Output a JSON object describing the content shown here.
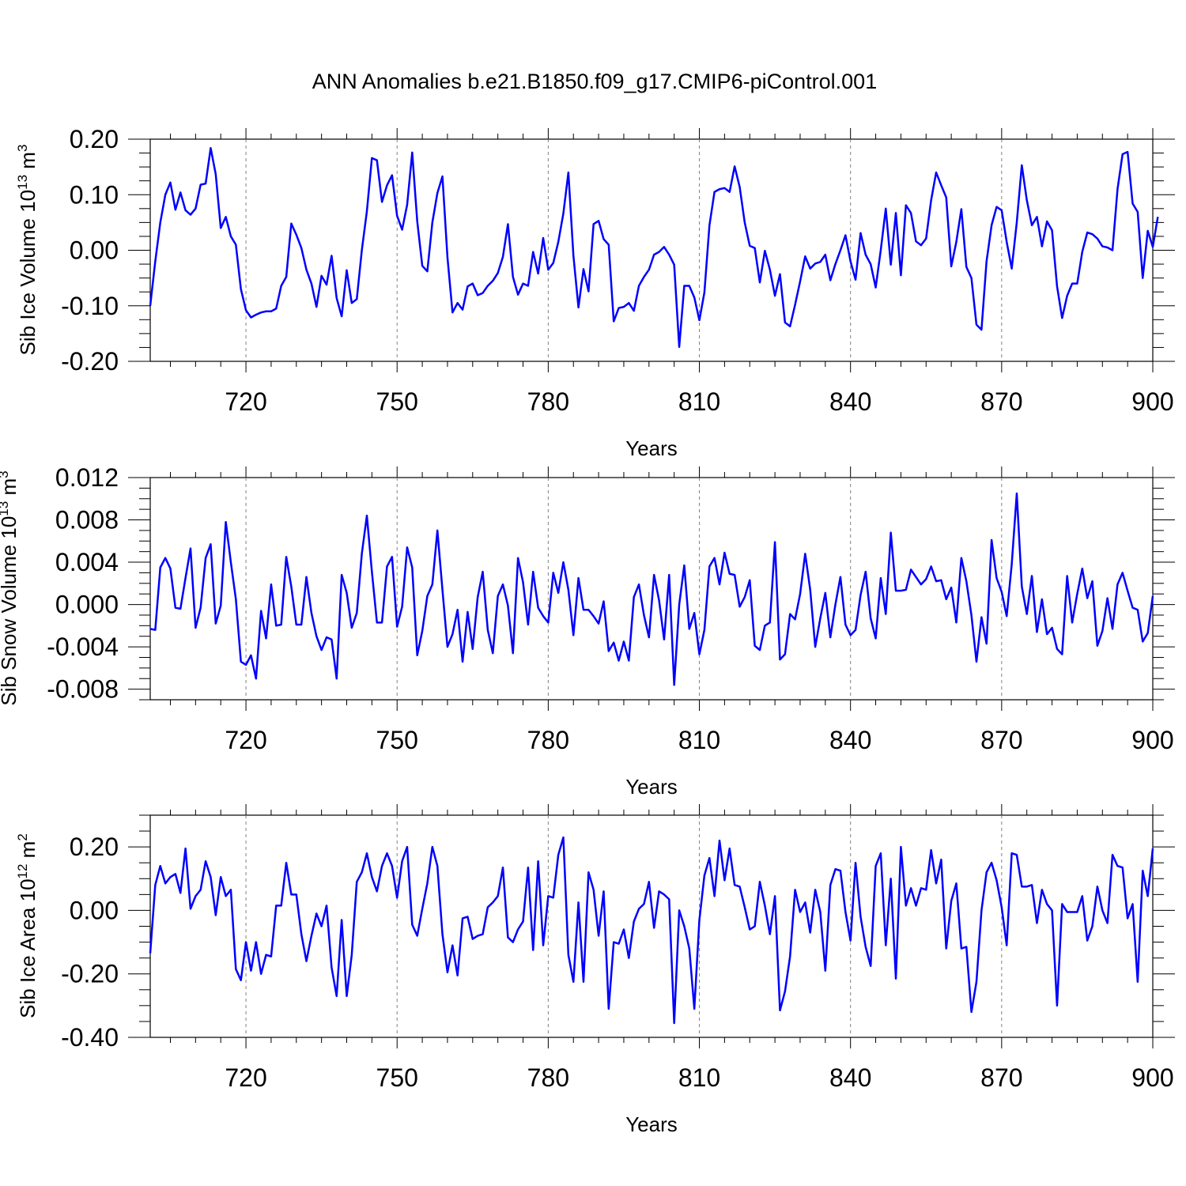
{
  "figure": {
    "title": "ANN Anomalies b.e21.B1850.f09_g17.CMIP6-piControl.001",
    "line_color": "#0000ff",
    "grid_color": "#808080",
    "axis_color": "#000000"
  },
  "chart_data": [
    {
      "type": "line",
      "title": "ANN Anomalies b.e21.B1850.f09_g17.CMIP6-piControl.001",
      "ylabel": "Sib Ice Volume 10",
      "ylabel_exponent": "13",
      "ylabel_unit": "m",
      "ylabel_unit_exponent": "3",
      "xlabel": "Years",
      "xlim": [
        701,
        900
      ],
      "ylim": [
        -0.2,
        0.2
      ],
      "xticks": [
        720,
        750,
        780,
        810,
        840,
        870,
        900
      ],
      "xtick_labels": [
        "720",
        "750",
        "780",
        "810",
        "840",
        "870",
        "900"
      ],
      "yticks": [
        -0.2,
        -0.1,
        0.0,
        0.1,
        0.2
      ],
      "ytick_labels": [
        "-0.20",
        "-0.10",
        "0.00",
        "0.10",
        "0.20"
      ],
      "grid": "vertical dashed at major x ticks",
      "x_start": 701,
      "series": [
        {
          "color": "#0000ff",
          "values": [
            -0.1,
            -0.02,
            0.05,
            0.1,
            0.122,
            0.073,
            0.104,
            0.072,
            0.064,
            0.075,
            0.118,
            0.12,
            0.184,
            0.137,
            0.04,
            0.06,
            0.025,
            0.01,
            -0.07,
            -0.108,
            -0.121,
            -0.116,
            -0.112,
            -0.11,
            -0.11,
            -0.105,
            -0.064,
            -0.048,
            0.048,
            0.028,
            0.004,
            -0.035,
            -0.06,
            -0.102,
            -0.046,
            -0.062,
            -0.01,
            -0.086,
            -0.119,
            -0.036,
            -0.095,
            -0.088,
            0.0,
            0.07,
            0.166,
            0.162,
            0.087,
            0.117,
            0.135,
            0.062,
            0.037,
            0.082,
            0.176,
            0.052,
            -0.028,
            -0.038,
            0.05,
            0.103,
            0.133,
            -0.013,
            -0.112,
            -0.095,
            -0.107,
            -0.065,
            -0.06,
            -0.081,
            -0.077,
            -0.064,
            -0.055,
            -0.041,
            -0.012,
            0.047,
            -0.048,
            -0.08,
            -0.06,
            -0.064,
            -0.003,
            -0.042,
            0.022,
            -0.035,
            -0.023,
            0.015,
            0.066,
            0.14,
            -0.01,
            -0.103,
            -0.034,
            -0.074,
            0.047,
            0.053,
            0.02,
            0.01,
            -0.128,
            -0.104,
            -0.102,
            -0.095,
            -0.109,
            -0.064,
            -0.048,
            -0.035,
            -0.008,
            -0.003,
            0.006,
            -0.008,
            -0.026,
            -0.174,
            -0.064,
            -0.064,
            -0.085,
            -0.126,
            -0.076,
            0.045,
            0.105,
            0.11,
            0.112,
            0.105,
            0.151,
            0.114,
            0.05,
            0.008,
            0.004,
            -0.058,
            -0.001,
            -0.035,
            -0.082,
            -0.043,
            -0.13,
            -0.137,
            -0.098,
            -0.056,
            -0.011,
            -0.033,
            -0.024,
            -0.021,
            -0.008,
            -0.054,
            -0.025,
            0.0,
            0.027,
            -0.02,
            -0.053,
            0.031,
            -0.008,
            -0.025,
            -0.067,
            0.0,
            0.075,
            -0.026,
            0.067,
            -0.045,
            0.081,
            0.067,
            0.016,
            0.009,
            0.021,
            0.09,
            0.14,
            0.117,
            0.095,
            -0.029,
            0.015,
            0.074,
            -0.03,
            -0.05,
            -0.134,
            -0.143,
            -0.02,
            0.045,
            0.078,
            0.072,
            0.015,
            -0.033,
            0.05,
            0.153,
            0.09,
            0.045,
            0.06,
            0.007,
            0.052,
            0.036,
            -0.065,
            -0.122,
            -0.082,
            -0.06,
            -0.06,
            -0.003,
            0.032,
            0.029,
            0.021,
            0.007,
            0.005,
            0.0,
            0.11,
            0.173,
            0.177,
            0.084,
            0.069,
            -0.05,
            0.035,
            0.006,
            0.06
          ]
        }
      ]
    },
    {
      "type": "line",
      "ylabel": "Sib Snow Volume 10",
      "ylabel_exponent": "13",
      "ylabel_unit": "m",
      "ylabel_unit_exponent": "3",
      "xlabel": "Years",
      "xlim": [
        701,
        900
      ],
      "ylim": [
        -0.009,
        0.012
      ],
      "xticks": [
        720,
        750,
        780,
        810,
        840,
        870,
        900
      ],
      "xtick_labels": [
        "720",
        "750",
        "780",
        "810",
        "840",
        "870",
        "900"
      ],
      "yticks": [
        -0.008,
        -0.004,
        0.0,
        0.004,
        0.008,
        0.012
      ],
      "ytick_labels": [
        "-0.008",
        "-0.004",
        "0.000",
        "0.004",
        "0.008",
        "0.012"
      ],
      "grid": "vertical dashed at major x ticks",
      "x_start": 701,
      "series": [
        {
          "color": "#0000ff",
          "values": [
            -0.0023,
            -0.0024,
            0.0035,
            0.0044,
            0.0034,
            -0.0003,
            -0.0004,
            0.0025,
            0.0053,
            -0.0022,
            -0.0003,
            0.0044,
            0.0057,
            -0.0018,
            -0.0001,
            0.0078,
            0.004,
            0.0005,
            -0.0054,
            -0.0057,
            -0.0048,
            -0.007,
            -0.0006,
            -0.0032,
            0.0019,
            -0.002,
            -0.0019,
            0.0045,
            0.0017,
            -0.0019,
            -0.0019,
            0.0026,
            -0.0008,
            -0.003,
            -0.0043,
            -0.0031,
            -0.0033,
            -0.007,
            0.0028,
            0.0011,
            -0.0022,
            -0.0008,
            0.0048,
            0.0084,
            0.0031,
            -0.0017,
            -0.0017,
            0.0036,
            0.0045,
            -0.0021,
            -0.0002,
            0.0054,
            0.0035,
            -0.0048,
            -0.0025,
            0.0008,
            0.0019,
            0.007,
            0.0014,
            -0.004,
            -0.0028,
            -0.0005,
            -0.0054,
            -0.0007,
            -0.0042,
            0.0007,
            0.0031,
            -0.0024,
            -0.0046,
            0.0008,
            0.0019,
            -0.0001,
            -0.0046,
            0.0044,
            0.0021,
            -0.0019,
            0.0031,
            -0.0003,
            -0.0011,
            -0.0017,
            0.003,
            0.0011,
            0.004,
            0.0014,
            -0.0029,
            0.0025,
            -0.0005,
            -0.0005,
            -0.0011,
            -0.0018,
            0.0003,
            -0.0044,
            -0.0036,
            -0.0053,
            -0.0035,
            -0.0053,
            0.0007,
            0.0019,
            -0.001,
            -0.0031,
            0.0028,
            0.0004,
            -0.0033,
            0.0028,
            -0.0076,
            0.0,
            0.0037,
            -0.0023,
            -0.0008,
            -0.0047,
            -0.0024,
            0.0036,
            0.0044,
            0.0019,
            0.0049,
            0.0029,
            0.0028,
            -0.0002,
            0.0007,
            0.0023,
            -0.0039,
            -0.0043,
            -0.002,
            -0.0017,
            0.0059,
            -0.0052,
            -0.0047,
            -0.0009,
            -0.0014,
            0.001,
            0.0048,
            0.0014,
            -0.004,
            -0.0013,
            0.0011,
            -0.0031,
            0.0,
            0.0026,
            -0.0019,
            -0.0029,
            -0.0024,
            0.0009,
            0.0031,
            -0.0013,
            -0.0032,
            0.0025,
            -0.0009,
            0.0068,
            0.0013,
            0.0013,
            0.0014,
            0.0033,
            0.0026,
            0.0019,
            0.0024,
            0.0036,
            0.0022,
            0.0023,
            0.0005,
            0.0016,
            -0.0017,
            0.0044,
            0.0022,
            -0.001,
            -0.0054,
            -0.0012,
            -0.0037,
            0.0061,
            0.0025,
            0.0012,
            -0.0011,
            0.0038,
            0.0105,
            0.0017,
            -0.0009,
            0.0027,
            -0.0026,
            0.0005,
            -0.0028,
            -0.0022,
            -0.0042,
            -0.0047,
            0.0027,
            -0.0017,
            0.001,
            0.0034,
            0.0006,
            0.0022,
            -0.0039,
            -0.0025,
            0.0006,
            -0.0023,
            0.0019,
            0.003,
            0.0013,
            -0.0003,
            -0.0005,
            -0.0035,
            -0.0027,
            0.0008
          ]
        }
      ]
    },
    {
      "type": "line",
      "ylabel": "Sib Ice Area 10",
      "ylabel_exponent": "12",
      "ylabel_unit": "m",
      "ylabel_unit_exponent": "2",
      "xlabel": "Years",
      "xlim": [
        701,
        900
      ],
      "ylim": [
        -0.4,
        0.3
      ],
      "xticks": [
        720,
        750,
        780,
        810,
        840,
        870,
        900
      ],
      "xtick_labels": [
        "720",
        "750",
        "780",
        "810",
        "840",
        "870",
        "900"
      ],
      "yticks": [
        -0.4,
        -0.2,
        0.0,
        0.2
      ],
      "ytick_labels": [
        "-0.40",
        "-0.20",
        "0.00",
        "0.20"
      ],
      "grid": "vertical dashed at major x ticks",
      "x_start": 701,
      "series": [
        {
          "color": "#0000ff",
          "values": [
            -0.135,
            0.08,
            0.14,
            0.085,
            0.105,
            0.115,
            0.055,
            0.195,
            0.005,
            0.045,
            0.065,
            0.155,
            0.105,
            -0.015,
            0.105,
            0.045,
            0.065,
            -0.185,
            -0.22,
            -0.1,
            -0.19,
            -0.1,
            -0.2,
            -0.14,
            -0.145,
            0.015,
            0.015,
            0.15,
            0.05,
            0.05,
            -0.075,
            -0.16,
            -0.08,
            -0.01,
            -0.05,
            0.015,
            -0.18,
            -0.27,
            -0.03,
            -0.27,
            -0.14,
            0.09,
            0.12,
            0.18,
            0.105,
            0.06,
            0.14,
            0.18,
            0.14,
            0.04,
            0.155,
            0.2,
            -0.045,
            -0.08,
            0.005,
            0.085,
            0.2,
            0.14,
            -0.075,
            -0.195,
            -0.11,
            -0.205,
            -0.025,
            -0.02,
            -0.09,
            -0.08,
            -0.075,
            0.01,
            0.025,
            0.045,
            0.135,
            -0.085,
            -0.1,
            -0.06,
            -0.035,
            0.135,
            -0.125,
            0.155,
            -0.11,
            0.045,
            0.04,
            0.175,
            0.23,
            -0.14,
            -0.225,
            0.025,
            -0.225,
            0.12,
            0.065,
            -0.08,
            0.06,
            -0.31,
            -0.1,
            -0.105,
            -0.06,
            -0.15,
            -0.035,
            0.005,
            0.02,
            0.09,
            -0.055,
            0.06,
            0.05,
            0.035,
            -0.355,
            0.0,
            -0.05,
            -0.12,
            -0.31,
            -0.03,
            0.11,
            0.165,
            0.045,
            0.22,
            0.095,
            0.195,
            0.08,
            0.075,
            0.01,
            -0.06,
            -0.05,
            0.09,
            0.015,
            -0.075,
            0.045,
            -0.315,
            -0.255,
            -0.145,
            0.065,
            -0.005,
            0.025,
            -0.07,
            0.065,
            -0.005,
            -0.19,
            0.08,
            0.13,
            0.125,
            -0.005,
            -0.095,
            0.15,
            -0.02,
            -0.115,
            -0.175,
            0.14,
            0.18,
            -0.11,
            0.1,
            -0.215,
            0.2,
            0.015,
            0.07,
            0.015,
            0.07,
            0.065,
            0.19,
            0.085,
            0.16,
            -0.12,
            0.03,
            0.085,
            -0.12,
            -0.115,
            -0.32,
            -0.225,
            0.0,
            0.12,
            0.15,
            0.095,
            0.01,
            -0.11,
            0.18,
            0.175,
            0.075,
            0.075,
            0.08,
            -0.04,
            0.065,
            0.02,
            0.0,
            -0.3,
            0.02,
            -0.005,
            -0.005,
            -0.005,
            0.045,
            -0.095,
            -0.05,
            0.075,
            0.0,
            -0.04,
            0.175,
            0.14,
            0.135,
            -0.025,
            0.02,
            -0.225,
            0.125,
            0.045,
            0.195
          ]
        }
      ]
    }
  ]
}
